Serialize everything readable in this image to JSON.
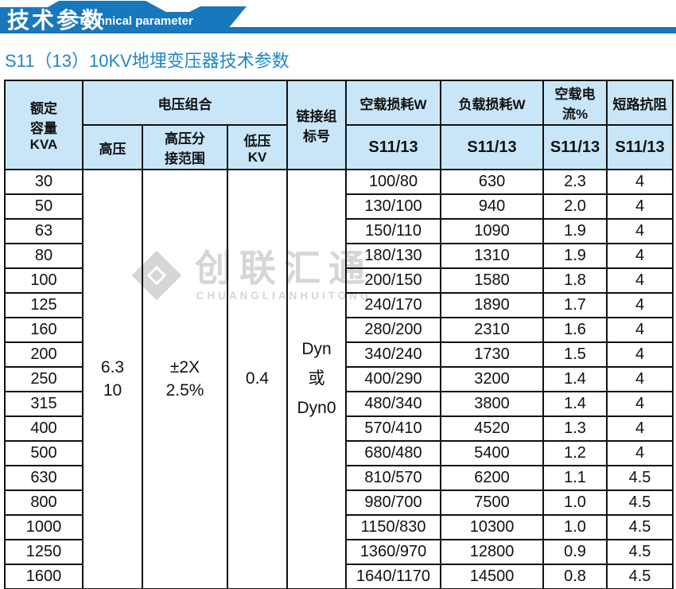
{
  "banner": {
    "title_cn": "技术参数",
    "title_en": "Technical parameter",
    "accent_color": "#1878be"
  },
  "page_title": "S11（13）10KV地埋变压器技术参数",
  "watermark": {
    "logo": "chuanglian-diamond-logo",
    "name_cn": "创联汇通",
    "name_en": "CHUANGLIANHUITONG"
  },
  "table": {
    "headers": {
      "capacity": "额定\n容量\nKVA",
      "voltage_group": "电压组合",
      "hv": "高压",
      "hv_tap": "高压分\n接范围",
      "lv": "低压\nKV",
      "vector_group": "链接组\n标号",
      "no_load_loss": "空载损耗W",
      "load_loss": "负载损耗W",
      "no_load_current": "空载电流%",
      "impedance": "短路抗阻",
      "model": "S11/13"
    },
    "merged": {
      "hv": "6.3\n10",
      "hv_tap": "±2X\n2.5%",
      "lv": "0.4",
      "vector": "Dyn\n或\nDyn0"
    },
    "rows": [
      {
        "kva": "30",
        "no_load_loss": "100/80",
        "load_loss": "630",
        "current": "2.3",
        "impedance": "4"
      },
      {
        "kva": "50",
        "no_load_loss": "130/100",
        "load_loss": "940",
        "current": "2.0",
        "impedance": "4"
      },
      {
        "kva": "63",
        "no_load_loss": "150/110",
        "load_loss": "1090",
        "current": "1.9",
        "impedance": "4"
      },
      {
        "kva": "80",
        "no_load_loss": "180/130",
        "load_loss": "1310",
        "current": "1.9",
        "impedance": "4"
      },
      {
        "kva": "100",
        "no_load_loss": "200/150",
        "load_loss": "1580",
        "current": "1.8",
        "impedance": "4"
      },
      {
        "kva": "125",
        "no_load_loss": "240/170",
        "load_loss": "1890",
        "current": "1.7",
        "impedance": "4"
      },
      {
        "kva": "160",
        "no_load_loss": "280/200",
        "load_loss": "2310",
        "current": "1.6",
        "impedance": "4"
      },
      {
        "kva": "200",
        "no_load_loss": "340/240",
        "load_loss": "1730",
        "current": "1.5",
        "impedance": "4"
      },
      {
        "kva": "250",
        "no_load_loss": "400/290",
        "load_loss": "3200",
        "current": "1.4",
        "impedance": "4"
      },
      {
        "kva": "315",
        "no_load_loss": "480/340",
        "load_loss": "3800",
        "current": "1.4",
        "impedance": "4"
      },
      {
        "kva": "400",
        "no_load_loss": "570/410",
        "load_loss": "4520",
        "current": "1.3",
        "impedance": "4"
      },
      {
        "kva": "500",
        "no_load_loss": "680/480",
        "load_loss": "5400",
        "current": "1.2",
        "impedance": "4"
      },
      {
        "kva": "630",
        "no_load_loss": "810/570",
        "load_loss": "6200",
        "current": "1.1",
        "impedance": "4.5"
      },
      {
        "kva": "800",
        "no_load_loss": "980/700",
        "load_loss": "7500",
        "current": "1.0",
        "impedance": "4.5"
      },
      {
        "kva": "1000",
        "no_load_loss": "1150/830",
        "load_loss": "10300",
        "current": "1.0",
        "impedance": "4.5"
      },
      {
        "kva": "1250",
        "no_load_loss": "1360/970",
        "load_loss": "12800",
        "current": "0.9",
        "impedance": "4.5"
      },
      {
        "kva": "1600",
        "no_load_loss": "1640/1170",
        "load_loss": "14500",
        "current": "0.8",
        "impedance": "4.5"
      }
    ]
  }
}
